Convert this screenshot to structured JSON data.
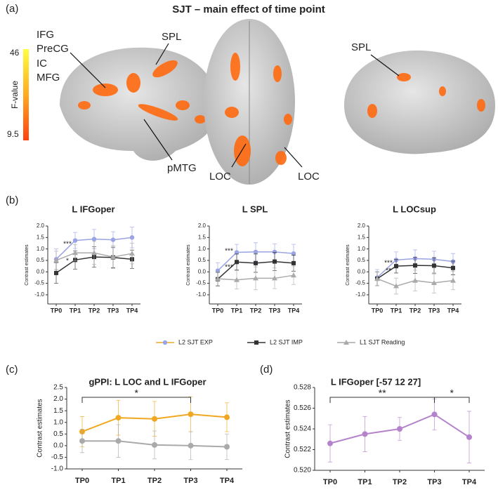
{
  "figure": {
    "title": "SJT – main effect of time point",
    "panels": [
      "(a)",
      "(b)",
      "(c)",
      "(d)"
    ],
    "colorbar": {
      "label": "F-value",
      "max_label": "46",
      "min_label": "9.5"
    },
    "regions": [
      "IFG",
      "PreCG",
      "IC",
      "MFG",
      "SPL",
      "pMTG",
      "LOC",
      "LOC",
      "SPL"
    ]
  },
  "chart_data": [
    {
      "type": "line",
      "title": "L IFGoper",
      "ylabel": "Contrast estimates",
      "categories": [
        "TP0",
        "TP1",
        "TP2",
        "TP3",
        "TP4"
      ],
      "ylim": [
        -1.4,
        2.0
      ],
      "yticks": [
        {
          "value": 2.0,
          "label": "2.0"
        },
        {
          "value": 1.5,
          "label": "1.5"
        },
        {
          "value": 1.0,
          "label": "1.0"
        },
        {
          "value": 0.5,
          "label": "0.5"
        },
        {
          "value": 0.0,
          "label": "0.0"
        },
        {
          "value": -0.5,
          "label": "-0.5"
        },
        {
          "value": -1.0,
          "label": "-1.0"
        }
      ],
      "series": [
        {
          "name": "L2  SJT EXP",
          "color": "#9aa3e3",
          "values": [
            0.55,
            1.37,
            1.43,
            1.4,
            1.5
          ],
          "errors": [
            0.45,
            0.35,
            0.42,
            0.35,
            0.45
          ]
        },
        {
          "name": "L2  SJT IMP",
          "color": "#333333",
          "values": [
            -0.05,
            0.52,
            0.65,
            0.63,
            0.55
          ],
          "errors": [
            0.45,
            0.4,
            0.45,
            0.45,
            0.4
          ]
        },
        {
          "name": "L1  SJT Reading",
          "color": "#aaaaaa",
          "values": [
            0.5,
            0.83,
            0.83,
            0.65,
            0.8
          ],
          "errors": [
            0.4,
            0.35,
            0.5,
            0.5,
            0.45
          ]
        }
      ],
      "annotations": [
        "***",
        "*"
      ]
    },
    {
      "type": "line",
      "title": "L SPL",
      "ylabel": "Contrast estimates",
      "categories": [
        "TP0",
        "TP1",
        "TP2",
        "TP3",
        "TP4"
      ],
      "ylim": [
        -1.4,
        2.0
      ],
      "yticks": [
        {
          "value": 2.0,
          "label": "2.0"
        },
        {
          "value": 1.5,
          "label": "1.5"
        },
        {
          "value": 1.0,
          "label": "1.0"
        },
        {
          "value": 0.5,
          "label": "0.5"
        },
        {
          "value": 0.0,
          "label": "0.0"
        },
        {
          "value": -0.5,
          "label": "-0.5"
        },
        {
          "value": -1.0,
          "label": "-1.0"
        }
      ],
      "series": [
        {
          "color": "#9aa3e3",
          "values": [
            0.05,
            0.85,
            0.87,
            0.87,
            0.8
          ],
          "errors": [
            0.35,
            0.35,
            0.4,
            0.35,
            0.4
          ]
        },
        {
          "color": "#333333",
          "values": [
            -0.32,
            0.43,
            0.38,
            0.45,
            0.38
          ],
          "errors": [
            0.3,
            0.35,
            0.4,
            0.4,
            0.35
          ]
        },
        {
          "color": "#aaaaaa",
          "values": [
            -0.3,
            -0.35,
            -0.28,
            -0.28,
            -0.15
          ],
          "errors": [
            0.3,
            0.4,
            0.5,
            0.45,
            0.4
          ]
        }
      ],
      "annotations": [
        "***",
        "***"
      ]
    },
    {
      "type": "line",
      "title": "L LOCsup",
      "ylabel": "Contrast estimates",
      "categories": [
        "TP0",
        "TP1",
        "TP2",
        "TP3",
        "TP4"
      ],
      "ylim": [
        -1.4,
        2.0
      ],
      "yticks": [
        {
          "value": 2.0,
          "label": "2.0"
        },
        {
          "value": 1.5,
          "label": "1.5"
        },
        {
          "value": 1.0,
          "label": "1.0"
        },
        {
          "value": 0.5,
          "label": "0.5"
        },
        {
          "value": 0.0,
          "label": "0.0"
        },
        {
          "value": -0.5,
          "label": "-0.5"
        },
        {
          "value": -1.0,
          "label": "-1.0"
        }
      ],
      "series": [
        {
          "color": "#9aa3e3",
          "values": [
            -0.25,
            0.52,
            0.58,
            0.55,
            0.45
          ],
          "errors": [
            0.35,
            0.35,
            0.38,
            0.35,
            0.35
          ]
        },
        {
          "color": "#333333",
          "values": [
            -0.3,
            0.25,
            0.28,
            0.27,
            0.17
          ],
          "errors": [
            0.3,
            0.3,
            0.35,
            0.35,
            0.3
          ]
        },
        {
          "color": "#aaaaaa",
          "values": [
            -0.3,
            -0.62,
            -0.38,
            -0.48,
            -0.38
          ],
          "errors": [
            0.3,
            0.35,
            0.45,
            0.45,
            0.4
          ]
        }
      ],
      "annotations": [
        "***",
        "**"
      ]
    },
    {
      "type": "line",
      "title": "gPPI: L LOC and L IFGoper",
      "ylabel": "Contrast estimates",
      "categories": [
        "TP0",
        "TP1",
        "TP2",
        "TP3",
        "TP4"
      ],
      "ylim": [
        -1.0,
        2.5
      ],
      "yticks": [
        {
          "value": 2.5,
          "label": "2.5"
        },
        {
          "value": 2.0,
          "label": "2.0"
        },
        {
          "value": 1.5,
          "label": "1.5"
        },
        {
          "value": 1.0,
          "label": "1.0"
        },
        {
          "value": 0.5,
          "label": "0.5"
        },
        {
          "value": 0.0,
          "label": "0.0"
        },
        {
          "value": -0.5,
          "label": "-0.5"
        },
        {
          "value": -1.0,
          "label": "-1.0"
        }
      ],
      "series": [
        {
          "color": "#f0a820",
          "values": [
            0.6,
            1.2,
            1.15,
            1.35,
            1.22
          ],
          "errors": [
            0.65,
            0.75,
            0.75,
            0.75,
            0.62
          ]
        },
        {
          "color": "#aaaaaa",
          "values": [
            0.2,
            0.2,
            0.03,
            0.0,
            -0.05
          ],
          "errors": [
            0.5,
            0.7,
            0.6,
            0.6,
            0.55
          ]
        }
      ],
      "annotations": [
        "*"
      ]
    },
    {
      "type": "line",
      "title": "L IFGoper [-57 12 27]",
      "ylabel": "Contrast estimates",
      "categories": [
        "TP0",
        "TP1",
        "TP2",
        "TP3",
        "TP4"
      ],
      "ylim": [
        0.52,
        0.528
      ],
      "yticks": [
        {
          "value": 0.528,
          "label": "0.528"
        },
        {
          "value": 0.526,
          "label": "0.526"
        },
        {
          "value": 0.524,
          "label": "0.524"
        },
        {
          "value": 0.522,
          "label": "0.522"
        },
        {
          "value": 0.52,
          "label": "0.520"
        }
      ],
      "series": [
        {
          "color": "#b583cc",
          "values": [
            0.5226,
            0.5235,
            0.524,
            0.5254,
            0.5232
          ],
          "errors": [
            0.0018,
            0.0017,
            0.0011,
            0.0015,
            0.0025
          ]
        }
      ],
      "annotations": [
        "**",
        "*"
      ]
    }
  ]
}
